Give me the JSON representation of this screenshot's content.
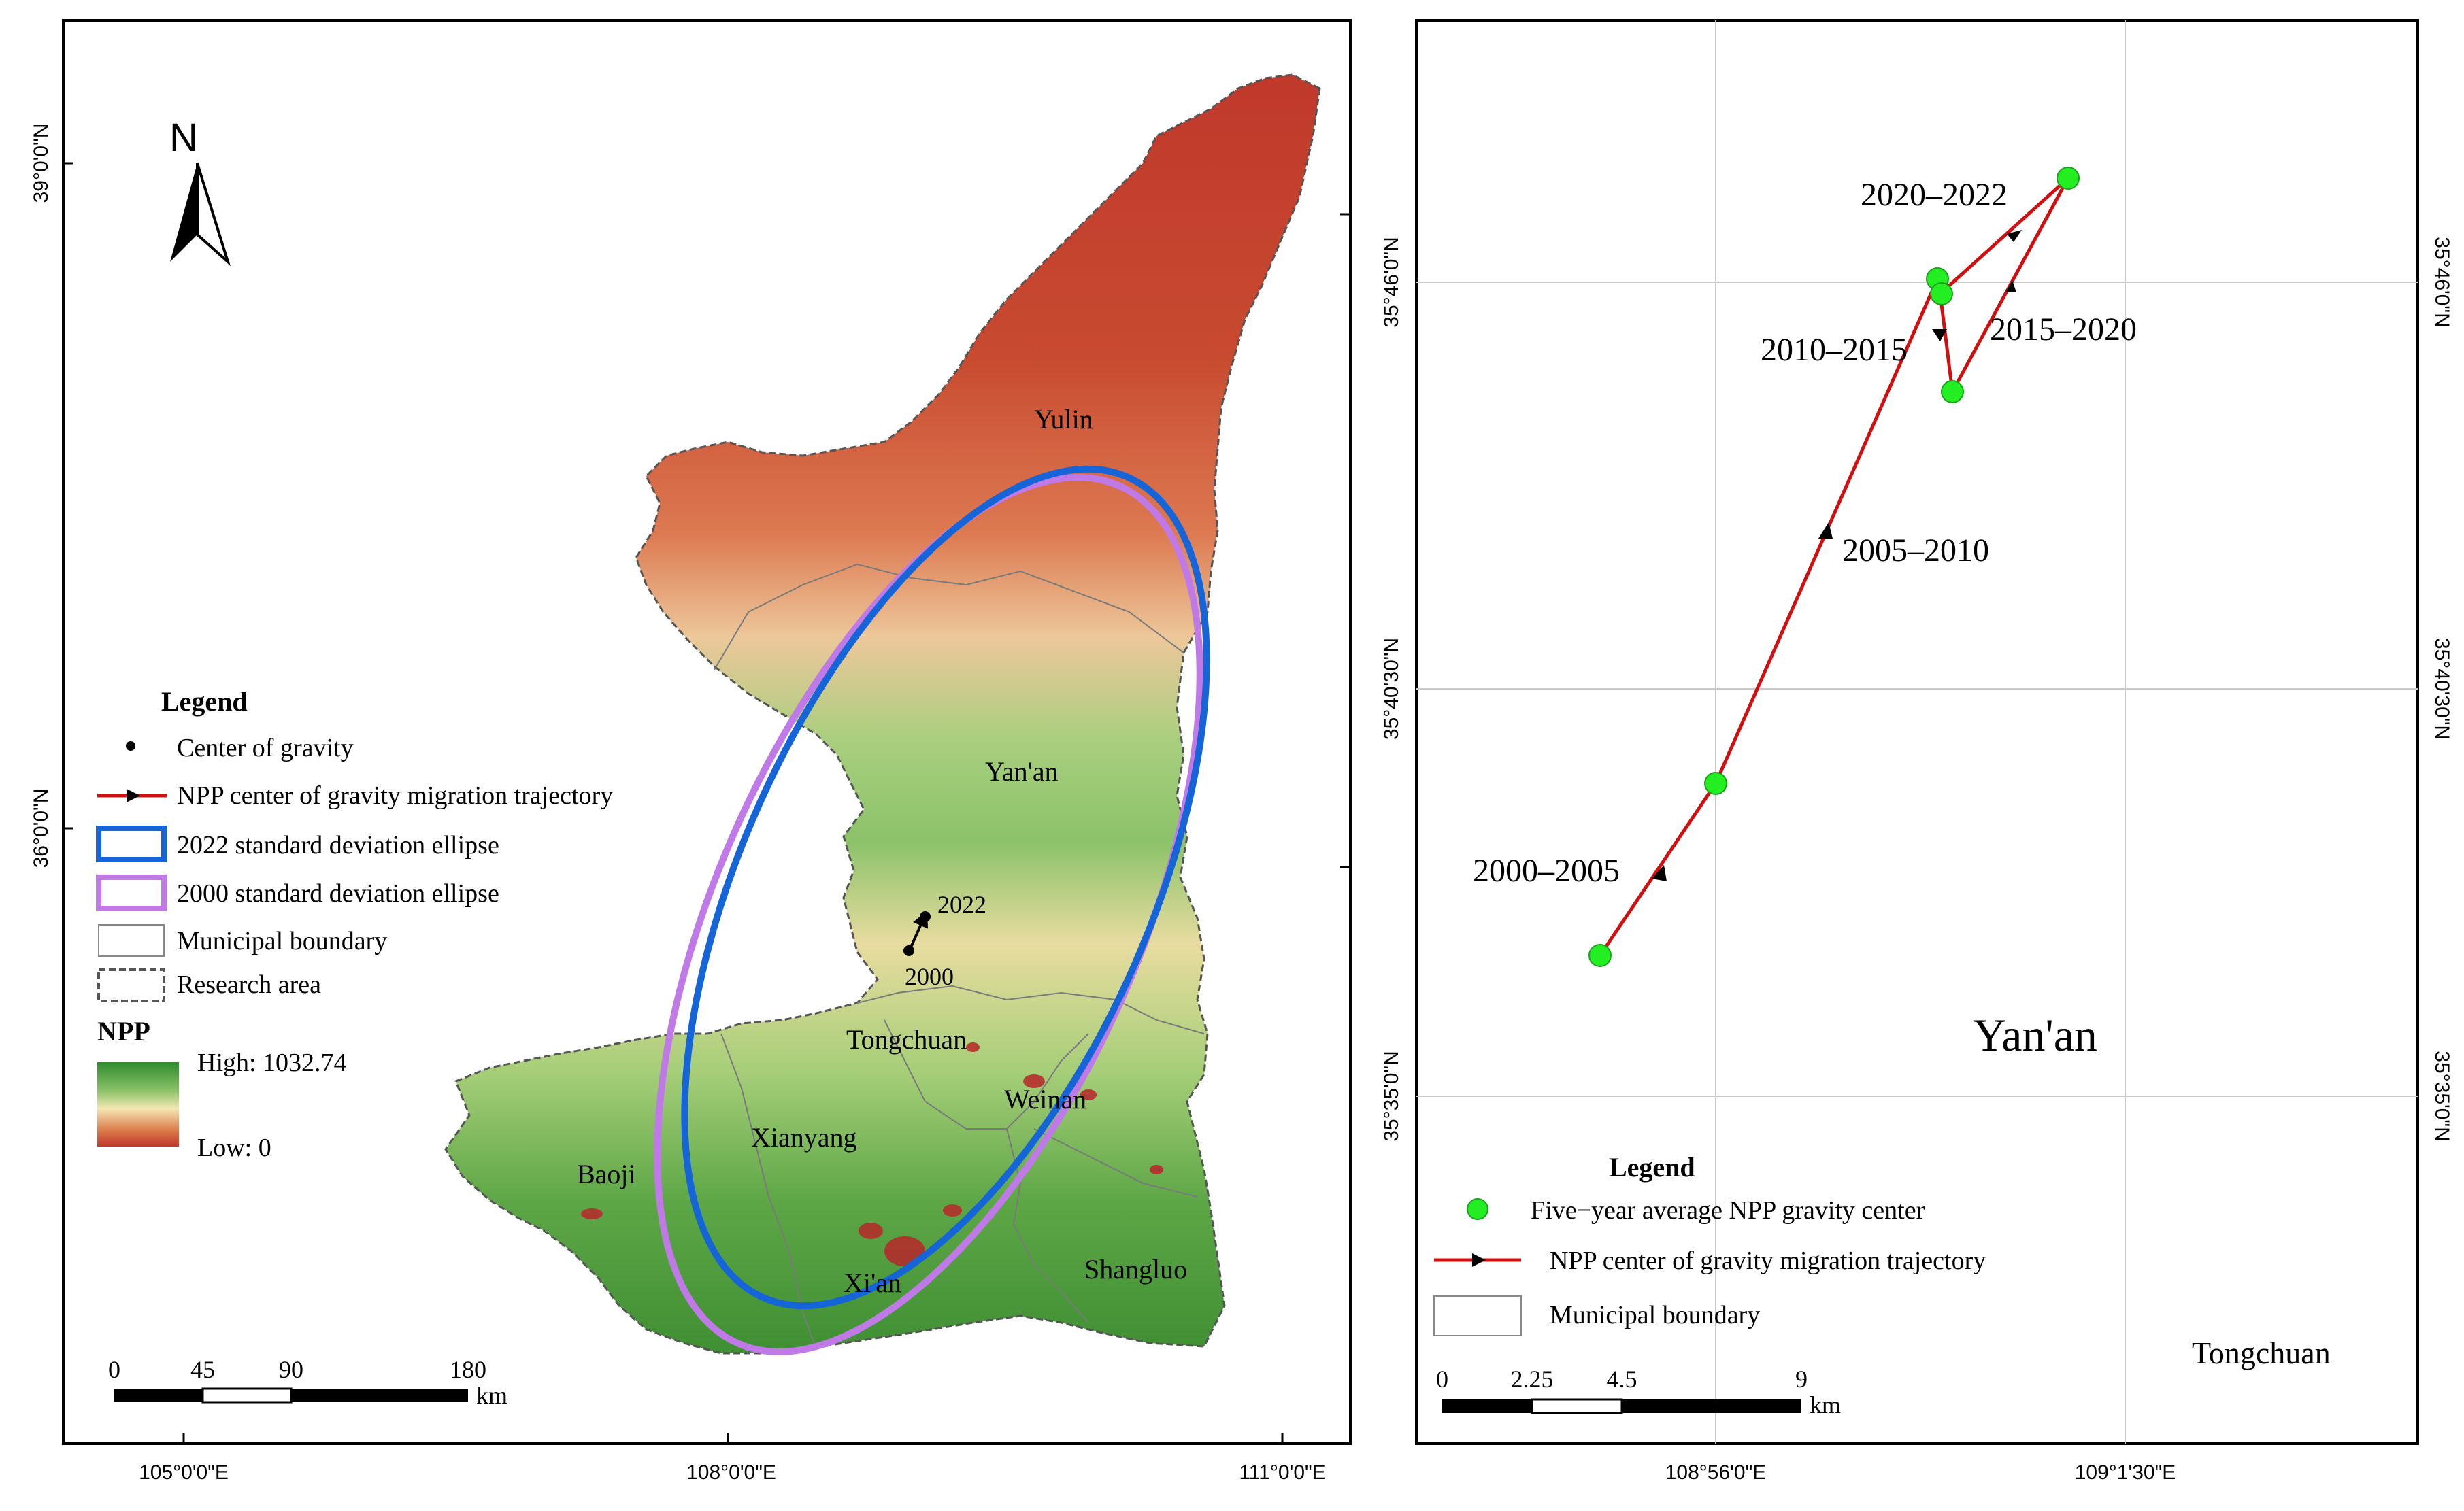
{
  "left_map": {
    "north_label": "N",
    "lat_labels": [
      "39°0'0\"N",
      "36°0'0\"N"
    ],
    "lon_labels": [
      "105°0'0\"E",
      "108°0'0\"E",
      "111°0'0\"E"
    ],
    "cities": [
      "Yulin",
      "Yan'an",
      "Tongchuan",
      "Weinan",
      "Xianyang",
      "Baoji",
      "Xi'an",
      "Shangluo"
    ],
    "year_labels": [
      "2022",
      "2000"
    ],
    "legend": {
      "title": "Legend",
      "items": [
        "Center of gravity",
        "NPP center of gravity migration trajectory",
        "2022 standard deviation ellipse",
        "2000 standard deviation ellipse",
        "Municipal boundary",
        "Research area"
      ],
      "npp_title": "NPP",
      "npp_high": "High: 1032.74",
      "npp_low": "Low: 0"
    },
    "scale": {
      "ticks": [
        "0",
        "45",
        "90",
        "180"
      ],
      "unit": "km"
    },
    "colors": {
      "ellipse_2022": "#1565d8",
      "ellipse_2000": "#c07ae8",
      "trajectory": "#d01010"
    }
  },
  "right_map": {
    "lat_labels": [
      "35°46'0\"N",
      "35°40'30\"N",
      "35°35'0\"N"
    ],
    "lon_labels": [
      "108°56'0\"E",
      "109°1'30\"E"
    ],
    "period_labels": [
      "2020–2022",
      "2010–2015",
      "2015–2020",
      "2005–2010",
      "2000–2005"
    ],
    "city_labels": [
      "Yan'an",
      "Tongchuan"
    ],
    "legend": {
      "title": "Legend",
      "items": [
        "Five−year average NPP gravity center",
        "NPP center of gravity migration trajectory",
        "Municipal boundary"
      ]
    },
    "scale": {
      "ticks": [
        "0",
        "2.25",
        "4.5",
        "9"
      ],
      "unit": "km"
    },
    "colors": {
      "gravity_center": "#22ee22",
      "trajectory": "#d01010"
    }
  }
}
